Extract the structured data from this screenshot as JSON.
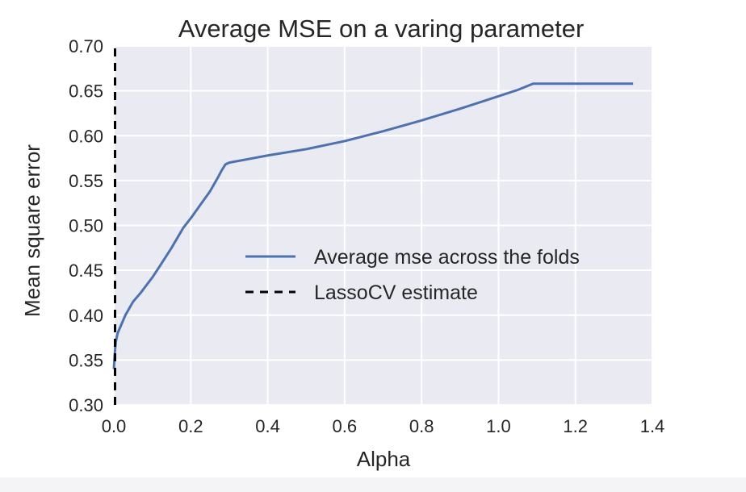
{
  "chart_data": {
    "type": "line",
    "title": "Average MSE on a varing parameter",
    "xlabel": "Alpha",
    "ylabel": "Mean square error",
    "xlim": [
      0.0,
      1.4
    ],
    "ylim": [
      0.3,
      0.7
    ],
    "xticks": [
      "0.0",
      "0.2",
      "0.4",
      "0.6",
      "0.8",
      "1.0",
      "1.2",
      "1.4"
    ],
    "yticks": [
      "0.30",
      "0.35",
      "0.40",
      "0.45",
      "0.50",
      "0.55",
      "0.60",
      "0.65",
      "0.70"
    ],
    "grid": true,
    "legend_position": "center-right",
    "series": [
      {
        "name": "Average mse across the folds",
        "color": "#4c72b0",
        "style": "solid",
        "x": [
          0.0,
          0.002,
          0.005,
          0.01,
          0.02,
          0.03,
          0.05,
          0.07,
          0.1,
          0.12,
          0.15,
          0.18,
          0.2,
          0.22,
          0.25,
          0.27,
          0.28,
          0.29,
          0.3,
          0.35,
          0.4,
          0.5,
          0.6,
          0.7,
          0.8,
          0.9,
          1.0,
          1.05,
          1.09,
          1.1,
          1.2,
          1.3,
          1.35
        ],
        "y": [
          0.34,
          0.355,
          0.37,
          0.38,
          0.39,
          0.4,
          0.415,
          0.425,
          0.442,
          0.455,
          0.475,
          0.497,
          0.508,
          0.52,
          0.538,
          0.553,
          0.561,
          0.568,
          0.57,
          0.574,
          0.578,
          0.585,
          0.594,
          0.605,
          0.617,
          0.63,
          0.644,
          0.651,
          0.658,
          0.658,
          0.658,
          0.658,
          0.658
        ]
      },
      {
        "name": "LassoCV estimate",
        "color": "#000000",
        "style": "dashed",
        "x": [
          0.0,
          0.0
        ],
        "y": [
          0.3,
          0.7
        ]
      }
    ]
  }
}
